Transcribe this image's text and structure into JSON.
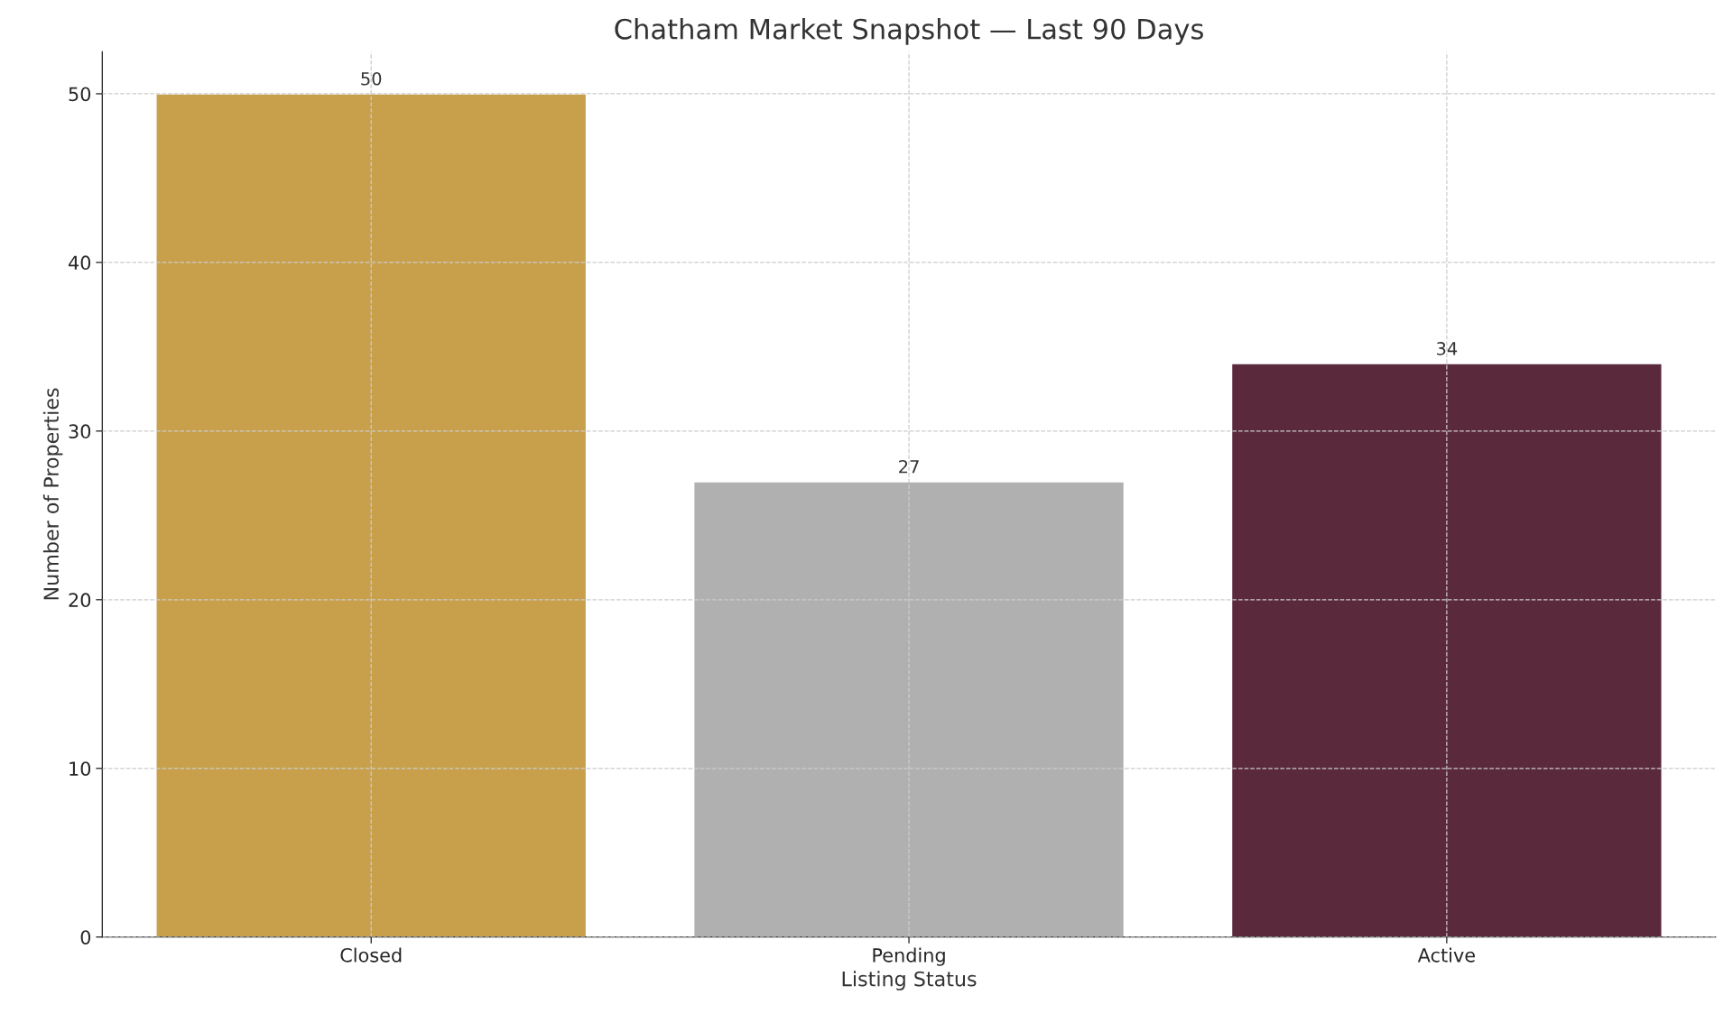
{
  "chart_data": {
    "type": "bar",
    "title": "Chatham Market Snapshot — Last 90 Days",
    "xlabel": "Listing Status",
    "ylabel": "Number of Properties",
    "categories": [
      "Closed",
      "Pending",
      "Active"
    ],
    "values": [
      50,
      27,
      34
    ],
    "colors": [
      "#c8a04b",
      "#b0b0b0",
      "#5b293c"
    ],
    "ylim": [
      0,
      52.5
    ],
    "yticks": [
      0,
      10,
      20,
      30,
      40,
      50
    ],
    "grid": true,
    "line_style": "dashed",
    "data_labels": true
  }
}
